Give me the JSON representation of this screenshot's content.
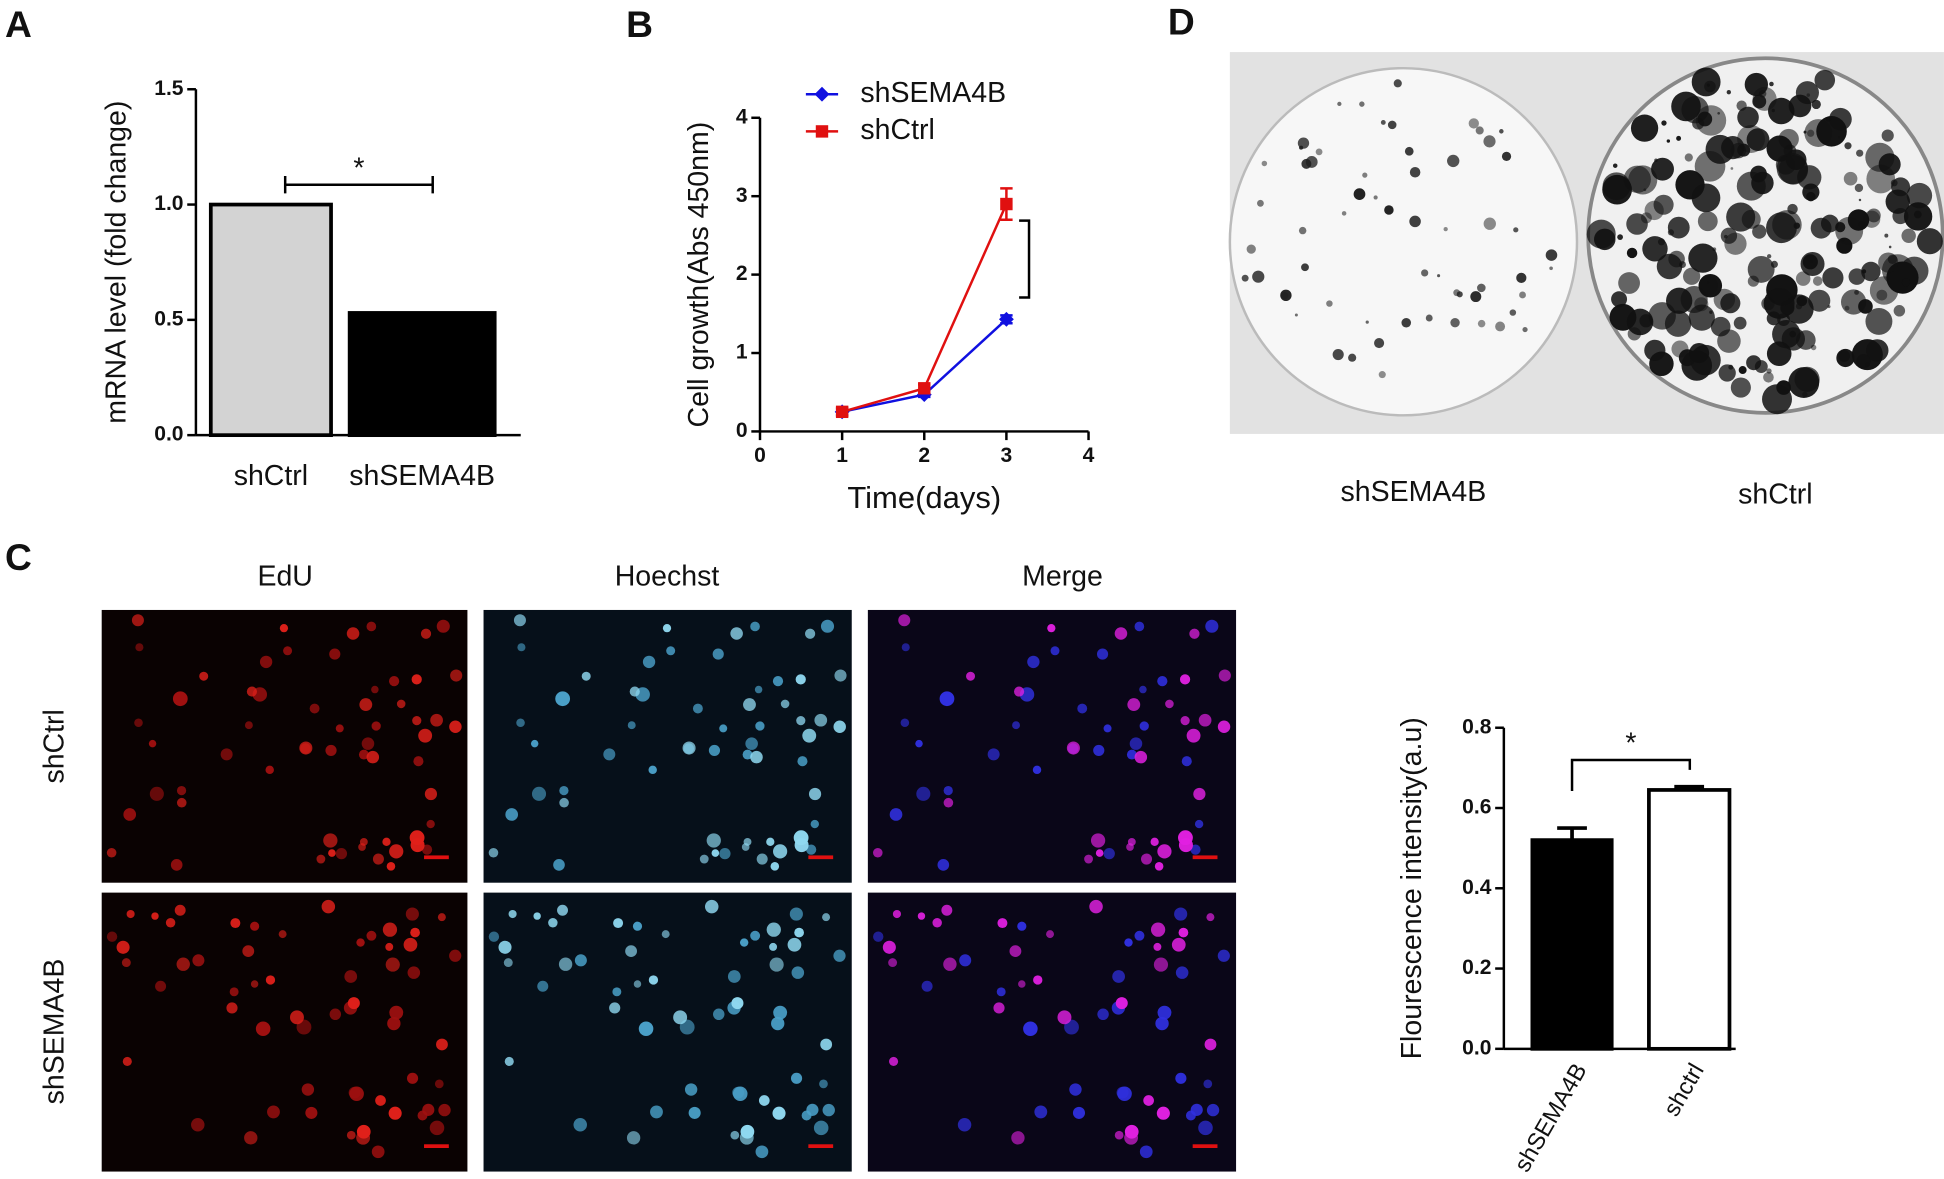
{
  "panels": {
    "a": "A",
    "b": "B",
    "c": "C",
    "d": "D"
  },
  "colony_assay": {
    "labels": [
      "shSEMA4B",
      "shCtrl"
    ]
  },
  "edu_assay": {
    "columns": [
      "EdU",
      "Hoechst",
      "Merge"
    ],
    "rows": [
      "shCtrl",
      "shSEMA4B"
    ]
  },
  "chart_data": [
    {
      "type": "bar",
      "ylabel": "mRNA level (fold change)",
      "categories": [
        "shCtrl",
        "shSEMA4B"
      ],
      "values": [
        1.0,
        0.53
      ],
      "colors": [
        "#d3d3d3",
        "#000000"
      ],
      "ylim": [
        0,
        1.5
      ],
      "yticks": [
        {
          "value": 0,
          "label": "0.0"
        },
        0.5,
        {
          "value": 1,
          "label": "1.0"
        },
        1.5
      ],
      "annotation": "*"
    },
    {
      "type": "line",
      "xlabel": "Time(days)",
      "ylabel": "Cell growth(Abs 450nm)",
      "x": [
        1,
        2,
        3
      ],
      "xlim": [
        0,
        4
      ],
      "xticks": [
        0,
        1,
        2,
        3,
        4
      ],
      "ylim": [
        0,
        4
      ],
      "yticks": [
        0,
        1,
        2,
        3,
        4
      ],
      "series": [
        {
          "name": "shSEMA4B",
          "color": "#1010e0",
          "marker": "diamond",
          "values": [
            0.25,
            0.47,
            1.43
          ],
          "errors": [
            0.04,
            0.03,
            0.05
          ]
        },
        {
          "name": "shCtrl",
          "color": "#e01010",
          "marker": "square",
          "values": [
            0.25,
            0.55,
            2.9
          ],
          "errors": [
            0.05,
            0.05,
            0.2
          ]
        }
      ]
    },
    {
      "type": "bar",
      "ylabel": "Flourescence intensity(a.u)",
      "categories": [
        "shSEMA4B",
        "shctrl"
      ],
      "values": [
        0.52,
        0.645
      ],
      "errors": [
        0.03,
        0.008
      ],
      "colors": [
        "#000000",
        "#ffffff"
      ],
      "ylim": [
        0,
        0.8
      ],
      "yticks": [
        {
          "value": 0,
          "label": "0.0"
        },
        0.2,
        0.4,
        0.6,
        0.8
      ],
      "annotation": "*"
    }
  ]
}
